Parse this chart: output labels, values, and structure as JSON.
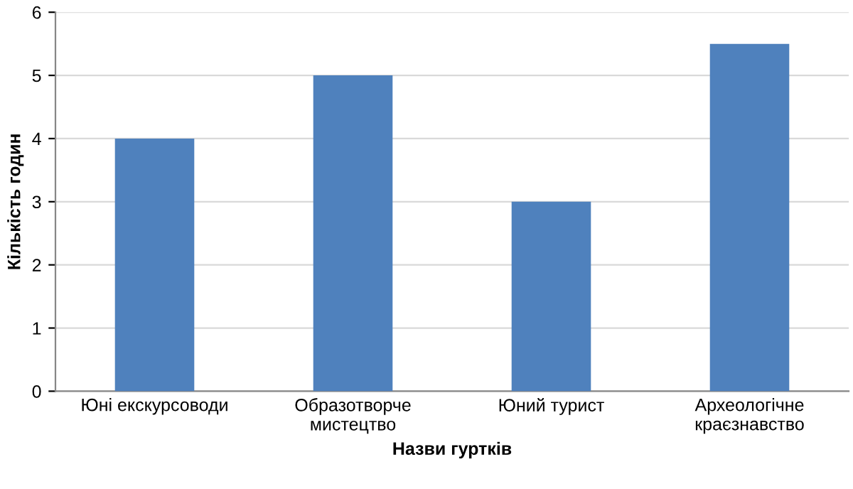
{
  "chart_data": {
    "type": "bar",
    "xlabel": "Назви гуртків",
    "ylabel": "Кількість годин",
    "categories": [
      "Юні екскурсоводи",
      "Образотворче\nмистецтво",
      "Юний турист",
      "Археологічне\nкраєзнавство"
    ],
    "values": [
      4,
      5,
      3,
      5.5
    ],
    "color": "#4f81bd",
    "ylim": [
      0,
      6
    ],
    "yticks": [
      0,
      1,
      2,
      3,
      4,
      5,
      6
    ],
    "grid": "y"
  }
}
